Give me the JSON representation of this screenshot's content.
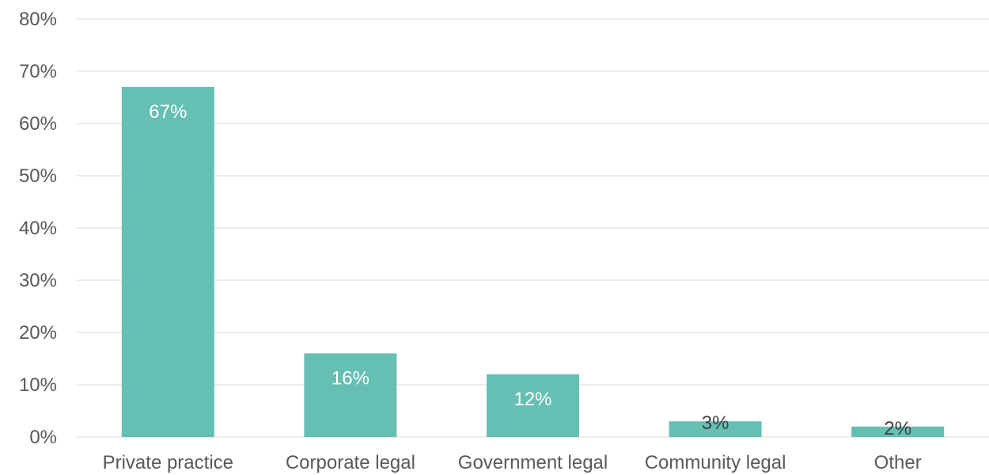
{
  "chart_data": {
    "type": "bar",
    "categories": [
      "Private practice",
      "Corporate legal",
      "Government legal",
      "Community legal",
      "Other"
    ],
    "values": [
      67,
      16,
      12,
      3,
      2
    ],
    "data_labels": [
      "67%",
      "16%",
      "12%",
      "3%",
      "2%"
    ],
    "title": "",
    "xlabel": "",
    "ylabel": "",
    "ylim": [
      0,
      80
    ],
    "yticks": [
      0,
      10,
      20,
      30,
      40,
      50,
      60,
      70,
      80
    ],
    "ytick_labels": [
      "0%",
      "10%",
      "20%",
      "30%",
      "40%",
      "50%",
      "60%",
      "70%",
      "80%"
    ],
    "grid": true,
    "legend": "none",
    "bar_color": "#66bfb3"
  }
}
